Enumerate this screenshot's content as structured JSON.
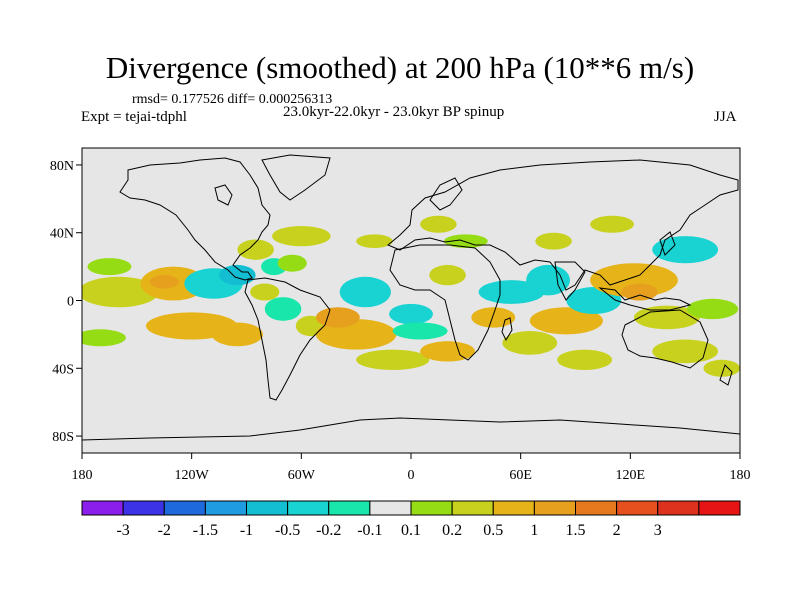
{
  "chart_data": {
    "type": "heatmap",
    "title": "Divergence (smoothed) at 200 hPa (10**6 m/s)",
    "stats_text": "rmsd= 0.177526 diff= 0.000256313",
    "left_label": "Expt = tejai-tdphl",
    "subtitle": "23.0kyr-22.0kyr - 23.0kyr BP spinup",
    "season": "JJA",
    "x_range": [
      -180,
      180
    ],
    "y_range": [
      -90,
      90
    ],
    "x_ticks": [
      {
        "value": -180,
        "label": "180"
      },
      {
        "value": -120,
        "label": "120W"
      },
      {
        "value": -60,
        "label": "60W"
      },
      {
        "value": 0,
        "label": "0"
      },
      {
        "value": 60,
        "label": "60E"
      },
      {
        "value": 120,
        "label": "120E"
      },
      {
        "value": 180,
        "label": "180"
      }
    ],
    "y_ticks": [
      {
        "value": 80,
        "label": "80N"
      },
      {
        "value": 40,
        "label": "40N"
      },
      {
        "value": 0,
        "label": "0"
      },
      {
        "value": -40,
        "label": "40S"
      },
      {
        "value": -80,
        "label": "80S"
      }
    ],
    "colorbar": {
      "colors": [
        "#8c1eeb",
        "#3c32e6",
        "#1e69dc",
        "#1e9be1",
        "#14bed2",
        "#19d2d2",
        "#19e6aa",
        "#e6e6e6",
        "#96dc14",
        "#c8d21e",
        "#e6b419",
        "#e6a01e",
        "#e6781e",
        "#e6501e",
        "#dc321e",
        "#e61414"
      ],
      "labels": [
        "-3",
        "-2",
        "-1.5",
        "-1",
        "-0.5",
        "-0.2",
        "-0.1",
        "0.1",
        "0.2",
        "0.5",
        "1",
        "1.5",
        "2",
        "3"
      ]
    },
    "regions": [
      {
        "lon": -160,
        "lat": 5,
        "rx": 22,
        "ry": 9,
        "value": 0.3
      },
      {
        "lon": -165,
        "lat": 20,
        "rx": 12,
        "ry": 5,
        "value": 0.15
      },
      {
        "lon": -170,
        "lat": -22,
        "rx": 14,
        "ry": 5,
        "value": 0.15
      },
      {
        "lon": -130,
        "lat": 10,
        "rx": 18,
        "ry": 10,
        "value": 0.6
      },
      {
        "lon": -135,
        "lat": 11,
        "rx": 8,
        "ry": 4,
        "value": 1.2
      },
      {
        "lon": -108,
        "lat": 10,
        "rx": 16,
        "ry": 9,
        "value": -0.4
      },
      {
        "lon": -95,
        "lat": 15,
        "rx": 10,
        "ry": 6,
        "value": -0.7
      },
      {
        "lon": -120,
        "lat": -15,
        "rx": 25,
        "ry": 8,
        "value": 0.5
      },
      {
        "lon": -95,
        "lat": -20,
        "rx": 14,
        "ry": 7,
        "value": 0.8
      },
      {
        "lon": -85,
        "lat": 30,
        "rx": 10,
        "ry": 6,
        "value": 0.4
      },
      {
        "lon": -80,
        "lat": 5,
        "rx": 8,
        "ry": 5,
        "value": 0.2
      },
      {
        "lon": -75,
        "lat": 20,
        "rx": 7,
        "ry": 5,
        "value": -0.15
      },
      {
        "lon": -60,
        "lat": 38,
        "rx": 16,
        "ry": 6,
        "value": 0.4
      },
      {
        "lon": -65,
        "lat": 22,
        "rx": 8,
        "ry": 5,
        "value": 0.15
      },
      {
        "lon": -70,
        "lat": -5,
        "rx": 10,
        "ry": 7,
        "value": -0.2
      },
      {
        "lon": -55,
        "lat": -15,
        "rx": 8,
        "ry": 6,
        "value": 0.3
      },
      {
        "lon": -30,
        "lat": -20,
        "rx": 22,
        "ry": 9,
        "value": 0.6
      },
      {
        "lon": -40,
        "lat": -10,
        "rx": 12,
        "ry": 6,
        "value": 1.1
      },
      {
        "lon": -25,
        "lat": 5,
        "rx": 14,
        "ry": 9,
        "value": -0.35
      },
      {
        "lon": -10,
        "lat": -35,
        "rx": 20,
        "ry": 6,
        "value": 0.4
      },
      {
        "lon": 0,
        "lat": -8,
        "rx": 12,
        "ry": 6,
        "value": -0.4
      },
      {
        "lon": 5,
        "lat": -18,
        "rx": 15,
        "ry": 5,
        "value": -0.2
      },
      {
        "lon": -20,
        "lat": 35,
        "rx": 10,
        "ry": 4,
        "value": 0.2
      },
      {
        "lon": 20,
        "lat": 15,
        "rx": 10,
        "ry": 6,
        "value": 0.3
      },
      {
        "lon": 15,
        "lat": 45,
        "rx": 10,
        "ry": 5,
        "value": 0.25
      },
      {
        "lon": 30,
        "lat": 35,
        "rx": 12,
        "ry": 4,
        "value": 0.15
      },
      {
        "lon": 20,
        "lat": -30,
        "rx": 15,
        "ry": 6,
        "value": 0.5
      },
      {
        "lon": 55,
        "lat": 5,
        "rx": 18,
        "ry": 7,
        "value": -0.5
      },
      {
        "lon": 45,
        "lat": -10,
        "rx": 12,
        "ry": 6,
        "value": 0.6
      },
      {
        "lon": 65,
        "lat": -25,
        "rx": 15,
        "ry": 7,
        "value": 0.2
      },
      {
        "lon": 75,
        "lat": 12,
        "rx": 12,
        "ry": 9,
        "value": -0.3
      },
      {
        "lon": 78,
        "lat": 35,
        "rx": 10,
        "ry": 5,
        "value": 0.2
      },
      {
        "lon": 85,
        "lat": -12,
        "rx": 20,
        "ry": 8,
        "value": 0.6
      },
      {
        "lon": 100,
        "lat": 0,
        "rx": 15,
        "ry": 8,
        "value": -0.5
      },
      {
        "lon": 95,
        "lat": -35,
        "rx": 15,
        "ry": 6,
        "value": 0.3
      },
      {
        "lon": 122,
        "lat": 12,
        "rx": 24,
        "ry": 10,
        "value": 0.6
      },
      {
        "lon": 125,
        "lat": 5,
        "rx": 10,
        "ry": 5,
        "value": 1.2
      },
      {
        "lon": 110,
        "lat": 45,
        "rx": 12,
        "ry": 5,
        "value": 0.2
      },
      {
        "lon": 150,
        "lat": 30,
        "rx": 18,
        "ry": 8,
        "value": -0.4
      },
      {
        "lon": 140,
        "lat": -10,
        "rx": 18,
        "ry": 7,
        "value": 0.4
      },
      {
        "lon": 150,
        "lat": -30,
        "rx": 18,
        "ry": 7,
        "value": 0.3
      },
      {
        "lon": 165,
        "lat": -5,
        "rx": 14,
        "ry": 6,
        "value": 0.15
      },
      {
        "lon": 170,
        "lat": -40,
        "rx": 10,
        "ry": 5,
        "value": 0.3
      }
    ]
  }
}
